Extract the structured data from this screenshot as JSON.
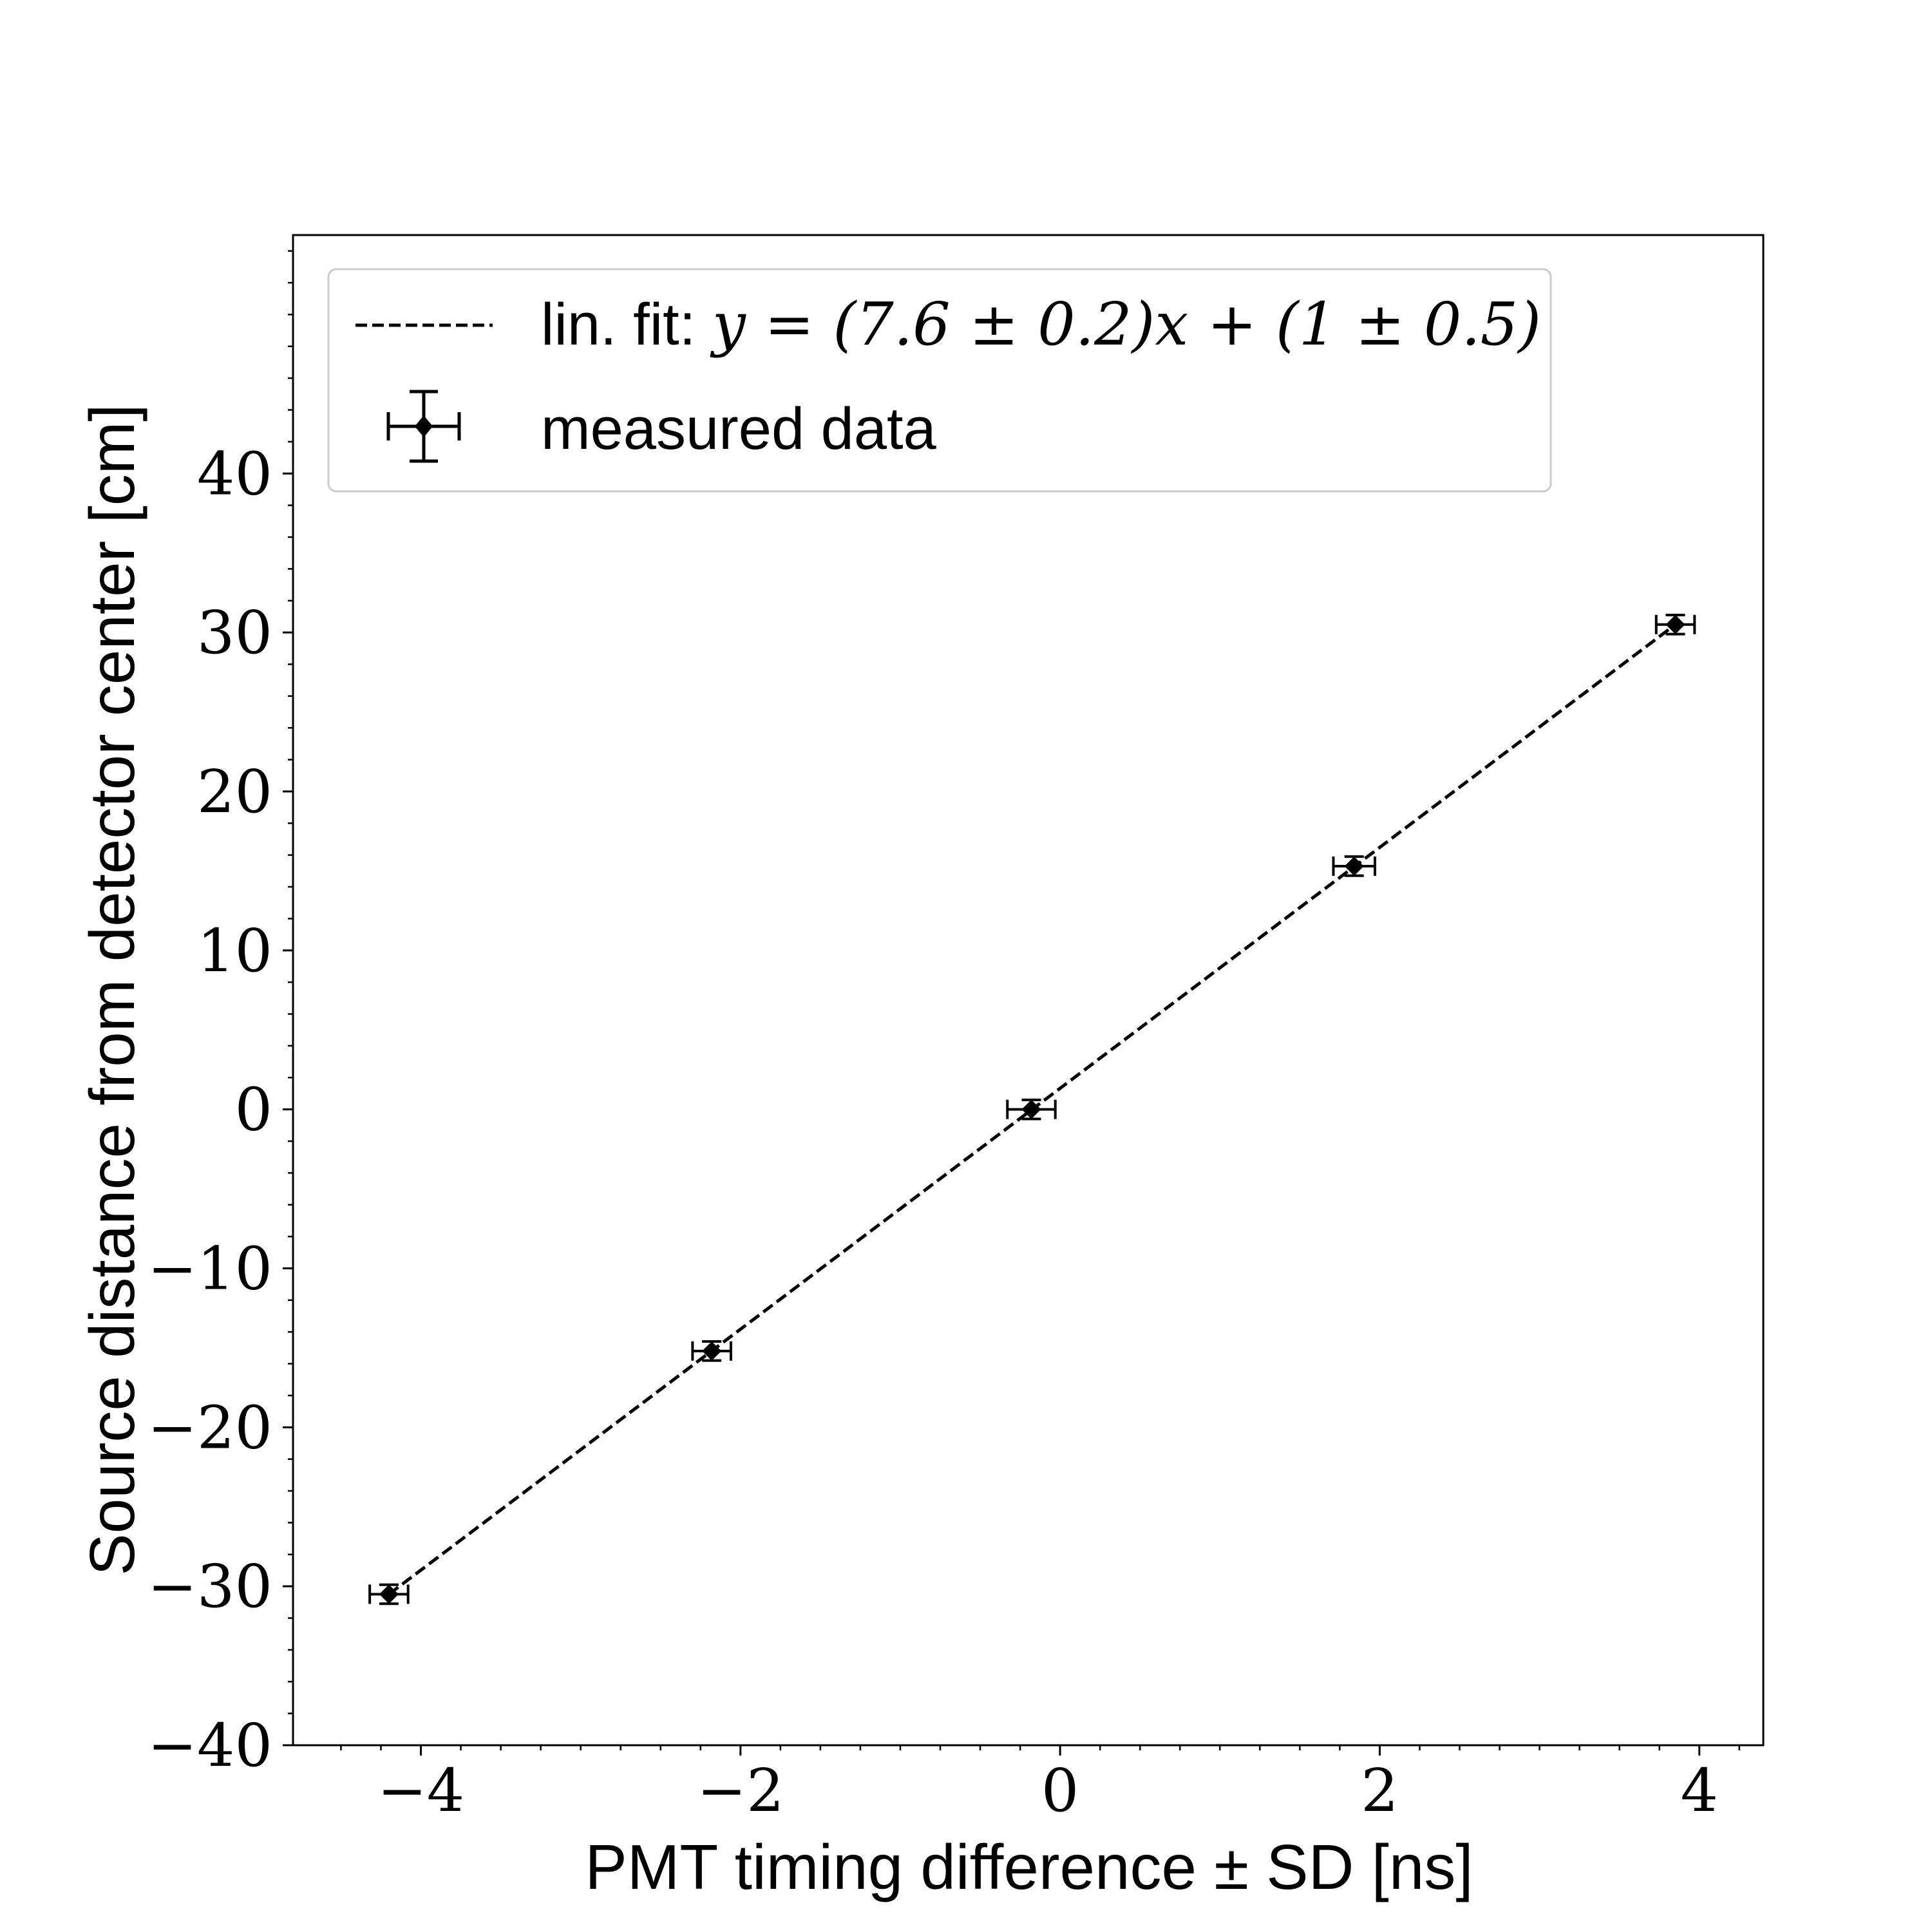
{
  "chart_data": {
    "type": "scatter",
    "xlabel": "PMT timing difference ± SD [ns]",
    "ylabel": "Source distance from detector center [cm]",
    "xlim": [
      -4.8,
      4.4
    ],
    "ylim": [
      -40,
      55
    ],
    "x_ticks": [
      -4,
      -2,
      0,
      2,
      4
    ],
    "x_tick_labels": [
      "−4",
      "−2",
      "0",
      "2",
      "4"
    ],
    "y_ticks": [
      -40,
      -30,
      -20,
      -10,
      0,
      10,
      20,
      30,
      40
    ],
    "y_tick_labels": [
      "−40",
      "−30",
      "−20",
      "−10",
      "0",
      "10",
      "20",
      "30",
      "40"
    ],
    "grid": false,
    "legend_position": "top-left",
    "series": [
      {
        "name": "measured data",
        "kind": "errorbar",
        "x": [
          -4.2,
          -2.18,
          -0.18,
          1.84,
          3.85
        ],
        "y": [
          -30.5,
          -15.2,
          0.0,
          15.3,
          30.5
        ],
        "x_err": [
          0.12,
          0.12,
          0.15,
          0.13,
          0.12
        ],
        "y_err": [
          0.6,
          0.6,
          0.6,
          0.6,
          0.6
        ],
        "color": "#000000"
      },
      {
        "name": "lin. fit",
        "kind": "line",
        "x": [
          -4.2,
          3.85
        ],
        "y": [
          -30.5,
          30.5
        ],
        "color": "#000000",
        "style": "dashed"
      }
    ],
    "legend": {
      "fit_prefix": "lin. fit: ",
      "fit_equation": "y = (7.6 ± 0.2)x + (1 ± 0.5)",
      "data_label": "measured data"
    }
  }
}
